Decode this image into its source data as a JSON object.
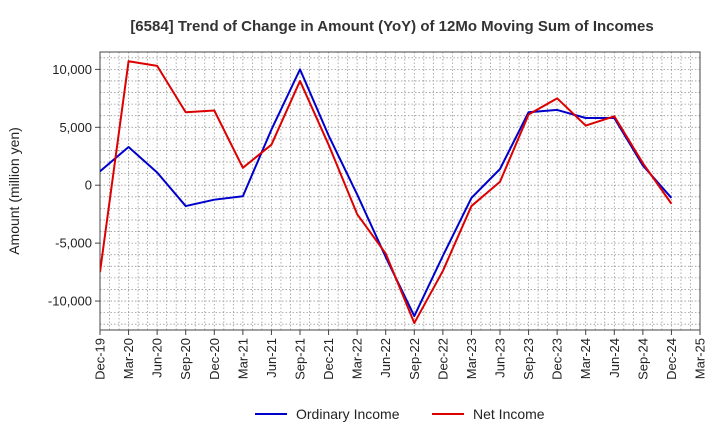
{
  "chart_data": {
    "type": "line",
    "title": "[6584]  Trend of Change in Amount (YoY) of 12Mo Moving Sum of Incomes",
    "xlabel": "",
    "ylabel": "Amount (million yen)",
    "ylim": [
      -12500,
      11500
    ],
    "yticks": [
      10000,
      5000,
      0,
      -5000,
      -10000
    ],
    "ytick_labels": [
      "10,000",
      "5,000",
      "0",
      "-5,000",
      "-10,000"
    ],
    "x_tick_labels": [
      "Dec-19",
      "Mar-20",
      "Jun-20",
      "Sep-20",
      "Dec-20",
      "Mar-21",
      "Jun-21",
      "Sep-21",
      "Dec-21",
      "Mar-22",
      "Jun-22",
      "Sep-22",
      "Dec-22",
      "Mar-23",
      "Jun-23",
      "Sep-23",
      "Dec-23",
      "Mar-24",
      "Jun-24",
      "Sep-24",
      "Dec-24",
      "Mar-25"
    ],
    "grid": true,
    "legend_position": "bottom",
    "series": [
      {
        "name": "Ordinary Income",
        "color": "#0000cc",
        "values": [
          1200,
          3300,
          1100,
          -1800,
          -1250,
          -950,
          4800,
          10000,
          4300,
          -800,
          -6200,
          -11300,
          -6100,
          -1100,
          1400,
          6300,
          6500,
          5800,
          5800,
          1700,
          -1100
        ]
      },
      {
        "name": "Net Income",
        "color": "#dd0000",
        "values": [
          -7500,
          10700,
          10300,
          6300,
          6450,
          1500,
          3500,
          9000,
          3500,
          -2500,
          -5900,
          -11900,
          -7400,
          -1800,
          300,
          6100,
          7500,
          5150,
          5950,
          1900,
          -1600
        ]
      }
    ]
  }
}
